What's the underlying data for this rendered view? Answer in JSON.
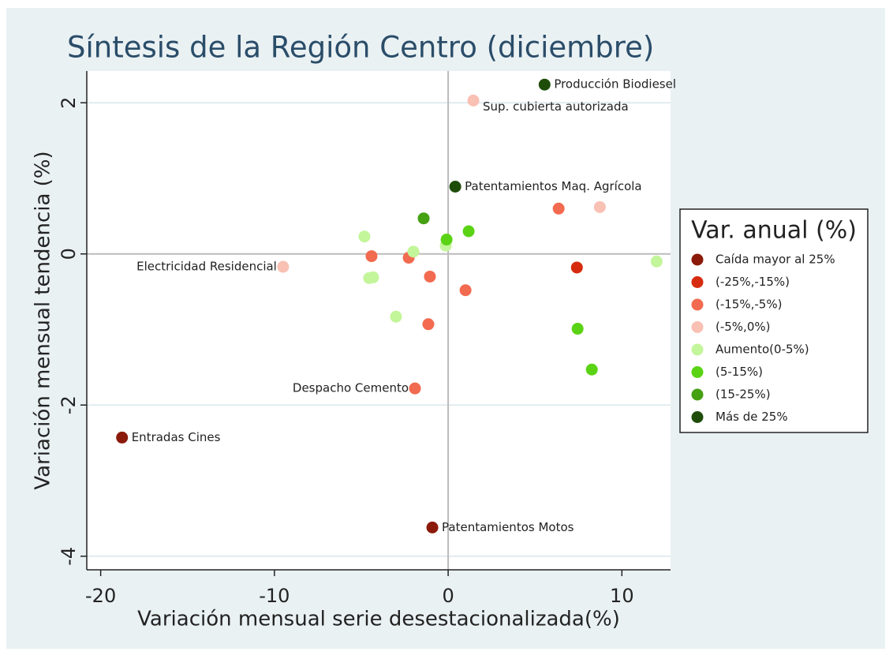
{
  "chart_data": {
    "type": "scatter",
    "title": "Síntesis de la Región Centro (diciembre)",
    "xlabel": "Variación mensual serie desestacionalizada(%)",
    "ylabel": "Variación mensual tendencia (%)",
    "xlim": [
      -20.8,
      12.8
    ],
    "ylim": [
      -4.18,
      2.42
    ],
    "xticks": [
      -20,
      -10,
      0,
      10
    ],
    "yticks": [
      -4,
      -2,
      0,
      2
    ],
    "grid": true,
    "legend_title": "Var. anual (%)",
    "legend_position": "right",
    "series": [
      {
        "name": "Caída mayor al 25%",
        "color": "#8b1a0a",
        "x": [
          -18.77,
          -0.91
        ],
        "y": [
          -2.43,
          -3.62
        ],
        "labels": [
          "Entradas Cines",
          "Patentamientos Motos"
        ]
      },
      {
        "name": "(-25%,-15%)",
        "color": "#d62b0e",
        "x": [
          7.41
        ],
        "y": [
          -0.18
        ],
        "labels": [
          null
        ]
      },
      {
        "name": "(-15%,-5%)",
        "color": "#f26a4f",
        "x": [
          6.36,
          -4.41,
          -2.27,
          -1.05,
          1.0,
          -1.14,
          -1.91
        ],
        "y": [
          0.6,
          -0.03,
          -0.05,
          -0.3,
          -0.48,
          -0.93,
          -1.78
        ],
        "labels": [
          null,
          null,
          null,
          null,
          null,
          null,
          "Despacho Cemento"
        ]
      },
      {
        "name": "(-5%,0%)",
        "color": "#f9c0b4",
        "x": [
          1.45,
          8.73,
          -9.5
        ],
        "y": [
          2.03,
          0.62,
          -0.17
        ],
        "labels": [
          "Sup. cubierta autorizada",
          null,
          "Electricidad Residencial"
        ]
      },
      {
        "name": "Aumento(0-5%)",
        "color": "#c3f59a",
        "x": [
          -0.14,
          12.0,
          -4.82,
          -2.0,
          -4.55,
          -4.32,
          -3.0
        ],
        "y": [
          0.11,
          -0.1,
          0.23,
          0.03,
          -0.32,
          -0.31,
          -0.83
        ],
        "labels": [
          null,
          null,
          null,
          null,
          null,
          null,
          null
        ]
      },
      {
        "name": "(5-15%)",
        "color": "#5ad314",
        "x": [
          -0.09,
          1.18,
          7.45,
          8.27
        ],
        "y": [
          0.19,
          0.3,
          -0.99,
          -1.53
        ],
        "labels": [
          null,
          null,
          null,
          null
        ]
      },
      {
        "name": "(15-25%)",
        "color": "#45a012",
        "x": [
          -1.41
        ],
        "y": [
          0.47
        ],
        "labels": [
          null
        ]
      },
      {
        "name": "Más de 25%",
        "color": "#1e4d0a",
        "x": [
          5.55,
          0.41
        ],
        "y": [
          2.24,
          0.89
        ],
        "labels": [
          "Producción Biodiesel",
          "Patentamientos Maq. Agrícola"
        ]
      }
    ]
  }
}
